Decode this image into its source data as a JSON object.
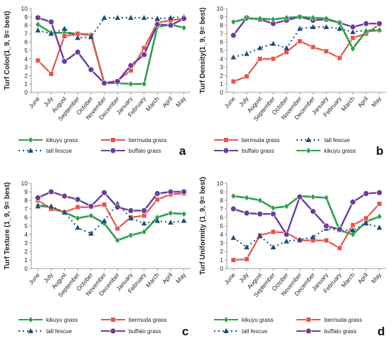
{
  "colors": {
    "kikuyu grass": "#2e9e47",
    "bermuda grass": "#e2564e",
    "tall fescue": "#1f4e79",
    "buffalo grass": "#6a3d9a"
  },
  "chart_data": [
    {
      "type": "line",
      "panel": "a",
      "ylabel": "Turf Color(1_9, 9= best)",
      "ylim": [
        0,
        10
      ],
      "yticks": [
        0,
        1,
        2,
        3,
        4,
        5,
        6,
        7,
        8,
        9,
        10
      ],
      "categories": [
        "June",
        "July",
        "August",
        "September",
        "October",
        "November",
        "December",
        "January",
        "February",
        "March",
        "April",
        "May"
      ],
      "series": [
        {
          "name": "kikuyu grass",
          "values": [
            8.1,
            7.1,
            7.1,
            7.0,
            6.9,
            1.1,
            1.1,
            1.0,
            1.0,
            7.8,
            8.1,
            7.7
          ]
        },
        {
          "name": "bermuda grass",
          "values": [
            3.8,
            2.2,
            6.7,
            7.0,
            6.8,
            1.1,
            1.4,
            2.6,
            5.3,
            8.3,
            8.6,
            8.8
          ]
        },
        {
          "name": "tall fescue",
          "values": [
            7.4,
            7.0,
            7.6,
            6.5,
            6.6,
            8.9,
            8.9,
            8.9,
            8.9,
            8.8,
            8.9,
            9.0
          ]
        },
        {
          "name": "buffalo grass",
          "values": [
            8.9,
            8.4,
            3.7,
            4.8,
            2.7,
            1.1,
            1.3,
            3.2,
            4.5,
            8.1,
            8.0,
            8.8
          ]
        }
      ],
      "legend": [
        "kikuyu grass",
        "bermuda grass",
        "tall fescue",
        "buffalo grass"
      ]
    },
    {
      "type": "line",
      "panel": "b",
      "ylabel": "Turf Density(1_9, 9= best)",
      "ylim": [
        0,
        10
      ],
      "yticks": [
        0,
        1,
        2,
        3,
        4,
        5,
        6,
        7,
        8,
        9,
        10
      ],
      "categories": [
        "June",
        "July",
        "August",
        "September",
        "October",
        "November",
        "December",
        "January",
        "February",
        "March",
        "April",
        "May"
      ],
      "series": [
        {
          "name": "bermuda grass",
          "values": [
            1.3,
            1.9,
            4.0,
            4.0,
            4.8,
            6.1,
            5.4,
            4.9,
            4.1,
            6.5,
            7.0,
            8.1
          ]
        },
        {
          "name": "tall fescue",
          "values": [
            4.2,
            4.6,
            5.3,
            5.8,
            5.3,
            7.6,
            7.8,
            7.8,
            7.6,
            7.2,
            7.4,
            7.5
          ]
        },
        {
          "name": "buffalo grass",
          "values": [
            6.8,
            8.9,
            8.7,
            8.2,
            8.6,
            9.0,
            8.6,
            8.7,
            8.3,
            7.8,
            8.2,
            8.2
          ]
        },
        {
          "name": "kikuyu grass",
          "values": [
            8.4,
            8.8,
            8.8,
            8.7,
            8.9,
            9.0,
            8.9,
            8.8,
            8.3,
            5.2,
            7.3,
            7.4
          ]
        }
      ],
      "legend": [
        "bermuda grass",
        "tall fescue",
        "buffalo grass",
        "kikuyu grass"
      ]
    },
    {
      "type": "line",
      "panel": "c",
      "ylabel": "Turf Texture (1_9, 9= best)",
      "ylim": [
        0,
        10
      ],
      "yticks": [
        0,
        1,
        2,
        3,
        4,
        5,
        6,
        7,
        8,
        9,
        10
      ],
      "categories": [
        "June",
        "July",
        "August",
        "September",
        "October",
        "November",
        "December",
        "January",
        "February",
        "March",
        "April",
        "May"
      ],
      "series": [
        {
          "name": "kikuyu grass",
          "values": [
            7.4,
            7.2,
            6.6,
            5.9,
            6.2,
            5.3,
            3.3,
            3.9,
            4.3,
            6.0,
            6.5,
            6.4
          ]
        },
        {
          "name": "bermuda grass",
          "values": [
            8.0,
            7.0,
            6.6,
            7.2,
            7.2,
            7.5,
            4.7,
            6.0,
            6.2,
            8.1,
            8.7,
            8.8
          ]
        },
        {
          "name": "tall fescue",
          "values": [
            7.3,
            7.3,
            6.6,
            4.8,
            4.1,
            5.6,
            7.6,
            5.9,
            5.3,
            5.6,
            5.4,
            5.6
          ]
        },
        {
          "name": "buffalo grass",
          "values": [
            8.3,
            9.0,
            8.5,
            8.1,
            7.3,
            8.9,
            7.2,
            6.8,
            6.8,
            8.8,
            9.0,
            9.0
          ]
        }
      ],
      "legend": [
        "kikuyu grass",
        "bermuda grass",
        "tall fescue",
        "buffalo grass"
      ]
    },
    {
      "type": "line",
      "panel": "d",
      "ylabel": "Turf Uniformity (1_9, 9= best)",
      "ylim": [
        0,
        10
      ],
      "yticks": [
        0,
        1,
        2,
        3,
        4,
        5,
        6,
        7,
        8,
        9,
        10
      ],
      "categories": [
        "June",
        "July",
        "August",
        "September",
        "October",
        "November",
        "December",
        "January",
        "February",
        "March",
        "April",
        "May"
      ],
      "series": [
        {
          "name": "kikuyu grass",
          "values": [
            8.5,
            8.3,
            8.0,
            7.1,
            7.3,
            8.5,
            8.4,
            8.3,
            4.5,
            4.0,
            5.5,
            6.1
          ]
        },
        {
          "name": "bermuda grass",
          "values": [
            1.0,
            1.1,
            3.9,
            4.3,
            4.2,
            3.3,
            3.3,
            3.3,
            2.4,
            5.1,
            5.9,
            7.6
          ]
        },
        {
          "name": "tall fescue",
          "values": [
            3.6,
            2.5,
            3.8,
            2.5,
            3.2,
            3.4,
            3.7,
            4.7,
            4.5,
            4.5,
            5.3,
            4.8
          ]
        },
        {
          "name": "buffalo grass",
          "values": [
            7.0,
            6.5,
            6.4,
            6.4,
            4.0,
            8.4,
            6.7,
            5.0,
            4.6,
            7.8,
            8.8,
            8.9
          ]
        }
      ],
      "legend": [
        "kikuyu grass",
        "bermuda grass",
        "tall fescue",
        "buffalo grass"
      ]
    }
  ]
}
